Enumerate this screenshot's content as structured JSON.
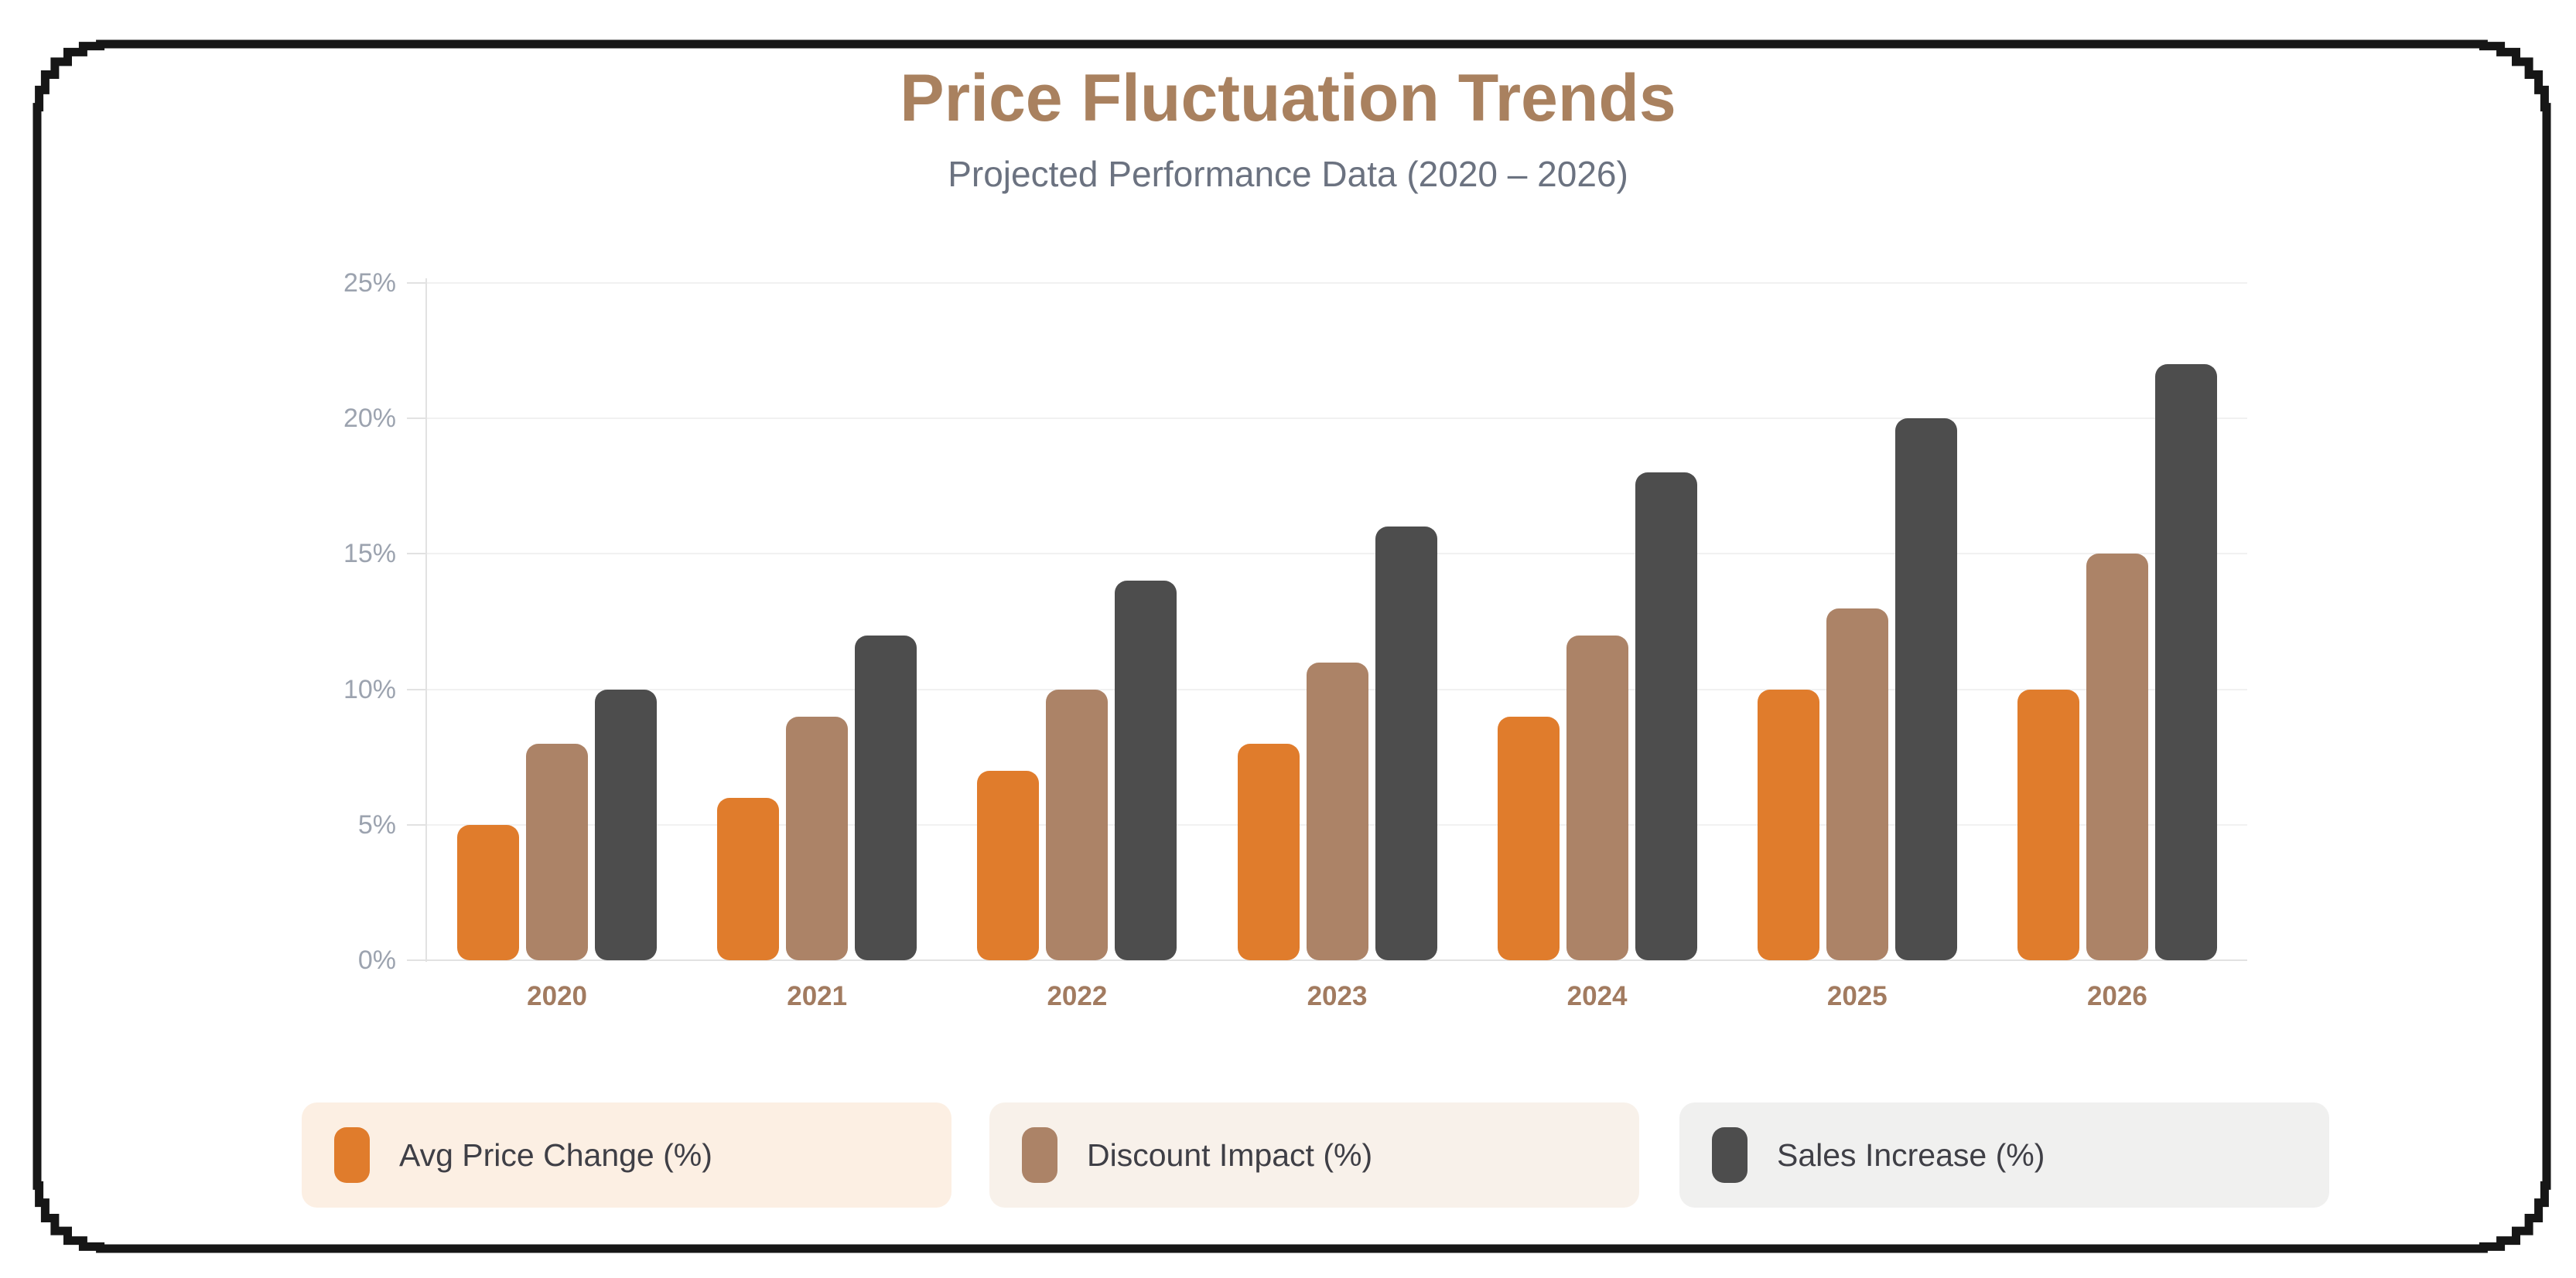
{
  "header": {
    "title": "Price Fluctuation Trends",
    "subtitle": "Projected Performance Data (2020 – 2026)"
  },
  "chart_data": {
    "type": "bar",
    "title": "Price Fluctuation Trends",
    "subtitle": "Projected Performance Data (2020 – 2026)",
    "categories": [
      "2020",
      "2021",
      "2022",
      "2023",
      "2024",
      "2025",
      "2026"
    ],
    "series": [
      {
        "name": "Avg Price Change (%)",
        "color": "#e07c2c",
        "values": [
          5,
          6,
          7,
          8,
          9,
          10,
          10
        ]
      },
      {
        "name": "Discount Impact (%)",
        "color": "#ac8367",
        "values": [
          8,
          9,
          10,
          11,
          12,
          13,
          15
        ]
      },
      {
        "name": "Sales Increase (%)",
        "color": "#4d4d4d",
        "values": [
          10,
          12,
          14,
          16,
          18,
          20,
          22
        ]
      }
    ],
    "xlabel": "",
    "ylabel": "",
    "ylim": [
      0,
      25
    ],
    "yticks": [
      "0%",
      "5%",
      "10%",
      "15%",
      "20%",
      "25%"
    ],
    "grid": true,
    "legend_position": "bottom"
  },
  "legend": {
    "items": [
      {
        "label": "Avg Price Change (%)",
        "swatch_color": "#e07c2c",
        "card_bg": "#fcefe3"
      },
      {
        "label": "Discount Impact (%)",
        "swatch_color": "#ac8367",
        "card_bg": "#f8f1ea"
      },
      {
        "label": "Sales Increase (%)",
        "swatch_color": "#4d4d4d",
        "card_bg": "#f0f0ef"
      }
    ]
  }
}
